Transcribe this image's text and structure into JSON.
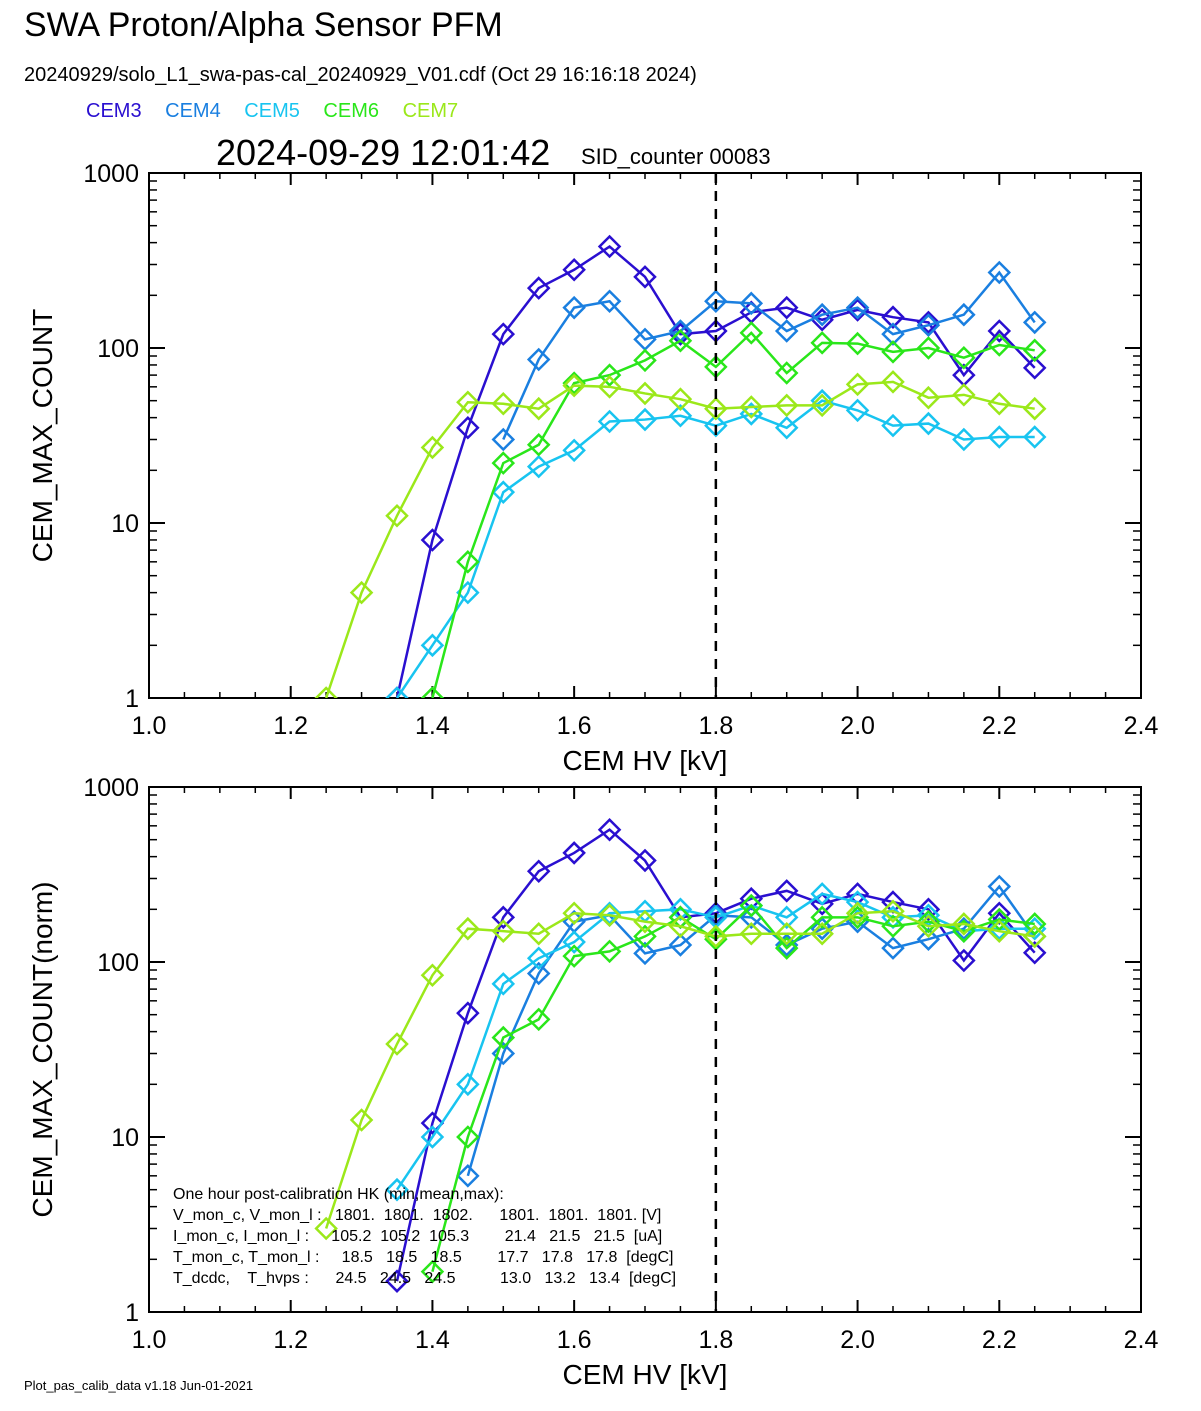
{
  "header": {
    "title": "SWA Proton/Alpha Sensor PFM",
    "file_line": "20240929/solo_L1_swa-pas-cal_20240929_V01.cdf  (Oct 29 16:16:18 2024)",
    "timestamp": "2024-09-29 12:01:42",
    "sid_counter": "SID_counter 00083"
  },
  "legend": [
    {
      "name": "CEM3",
      "color": "#2a0fd0"
    },
    {
      "name": "CEM4",
      "color": "#1a7fe0"
    },
    {
      "name": "CEM5",
      "color": "#18c4f0"
    },
    {
      "name": "CEM6",
      "color": "#2ae61a"
    },
    {
      "name": "CEM7",
      "color": "#9be81a"
    }
  ],
  "footer": "Plot_pas_calib_data v1.18 Jun-01-2021",
  "hk_text": [
    "One hour post-calibration HK (min,mean,max):",
    "V_mon_c, V_mon_l :   1801.  1801.  1802.      1801.  1801.  1801. [V]",
    "I_mon_c, I_mon_l :     105.2  105.2  105.3        21.4   21.5   21.5  [uA]",
    "T_mon_c, T_mon_l :     18.5   18.5   18.5        17.7   17.8   17.8  [degC]",
    "T_dcdc,    T_hvps :      24.5   24.5   24.5          13.0   13.2   13.4  [degC]"
  ],
  "chart_data": [
    {
      "type": "line",
      "markers": "diamond",
      "xlabel": "CEM HV [kV]",
      "ylabel": "CEM_MAX_COUNT",
      "xlim": [
        1.0,
        2.4
      ],
      "ylim": [
        1,
        1000
      ],
      "yscale": "log",
      "xticks": [
        "1.0",
        "1.2",
        "1.4",
        "1.6",
        "1.8",
        "2.0",
        "2.2",
        "2.4"
      ],
      "yticks": [
        "1",
        "10",
        "100",
        "1000"
      ],
      "vline": 1.8,
      "x": [
        1.25,
        1.3,
        1.35,
        1.4,
        1.45,
        1.5,
        1.55,
        1.6,
        1.65,
        1.7,
        1.75,
        1.8,
        1.85,
        1.9,
        1.95,
        2.0,
        2.05,
        2.1,
        2.15,
        2.2,
        2.25
      ],
      "series": [
        {
          "name": "CEM3",
          "values": [
            null,
            null,
            1,
            8,
            35,
            120,
            220,
            280,
            380,
            255,
            120,
            125,
            160,
            170,
            145,
            165,
            150,
            140,
            70,
            125,
            77
          ]
        },
        {
          "name": "CEM4",
          "values": [
            null,
            null,
            null,
            null,
            null,
            30,
            86,
            170,
            185,
            112,
            125,
            185,
            180,
            125,
            155,
            170,
            120,
            135,
            155,
            270,
            140
          ]
        },
        {
          "name": "CEM5",
          "values": [
            null,
            null,
            1,
            2,
            4,
            15,
            21,
            26,
            38,
            39,
            41,
            36,
            42,
            35,
            50,
            44,
            36,
            37,
            30,
            31,
            31
          ]
        },
        {
          "name": "CEM6",
          "values": [
            null,
            null,
            null,
            1,
            6,
            22,
            28,
            63,
            70,
            85,
            110,
            78,
            122,
            72,
            107,
            106,
            95,
            100,
            88,
            104,
            97
          ]
        },
        {
          "name": "CEM7",
          "values": [
            1,
            4,
            11,
            27,
            49,
            48,
            45,
            61,
            60,
            55,
            51,
            45,
            46,
            47,
            47,
            62,
            64,
            52,
            54,
            48,
            45
          ]
        }
      ]
    },
    {
      "type": "line",
      "markers": "diamond",
      "xlabel": "CEM HV [kV]",
      "ylabel": "CEM_MAX_COUNT(norm)",
      "xlim": [
        1.0,
        2.4
      ],
      "ylim": [
        1,
        1000
      ],
      "yscale": "log",
      "xticks": [
        "1.0",
        "1.2",
        "1.4",
        "1.6",
        "1.8",
        "2.0",
        "2.2",
        "2.4"
      ],
      "yticks": [
        "1",
        "10",
        "100",
        "1000"
      ],
      "vline": 1.8,
      "x": [
        1.25,
        1.3,
        1.35,
        1.4,
        1.45,
        1.5,
        1.55,
        1.6,
        1.65,
        1.7,
        1.75,
        1.8,
        1.85,
        1.9,
        1.95,
        2.0,
        2.05,
        2.1,
        2.15,
        2.2,
        2.25
      ],
      "series": [
        {
          "name": "CEM3",
          "values": [
            null,
            null,
            1.5,
            12,
            51,
            180,
            330,
            420,
            570,
            380,
            180,
            190,
            230,
            255,
            215,
            245,
            220,
            200,
            102,
            190,
            113
          ]
        },
        {
          "name": "CEM4",
          "values": [
            null,
            null,
            null,
            null,
            6,
            30,
            86,
            170,
            185,
            112,
            125,
            185,
            180,
            125,
            155,
            170,
            120,
            135,
            155,
            270,
            140
          ]
        },
        {
          "name": "CEM5",
          "values": [
            null,
            null,
            5,
            10,
            20,
            75,
            105,
            130,
            190,
            195,
            200,
            180,
            210,
            180,
            245,
            220,
            180,
            185,
            150,
            155,
            155
          ]
        },
        {
          "name": "CEM6",
          "values": [
            null,
            null,
            null,
            1.7,
            10,
            37,
            47,
            108,
            115,
            140,
            180,
            135,
            210,
            120,
            180,
            180,
            160,
            170,
            150,
            175,
            165
          ]
        },
        {
          "name": "CEM7",
          "values": [
            3,
            12.5,
            34,
            84,
            155,
            150,
            145,
            190,
            185,
            170,
            160,
            140,
            145,
            145,
            145,
            190,
            195,
            160,
            165,
            150,
            140
          ]
        }
      ]
    }
  ]
}
